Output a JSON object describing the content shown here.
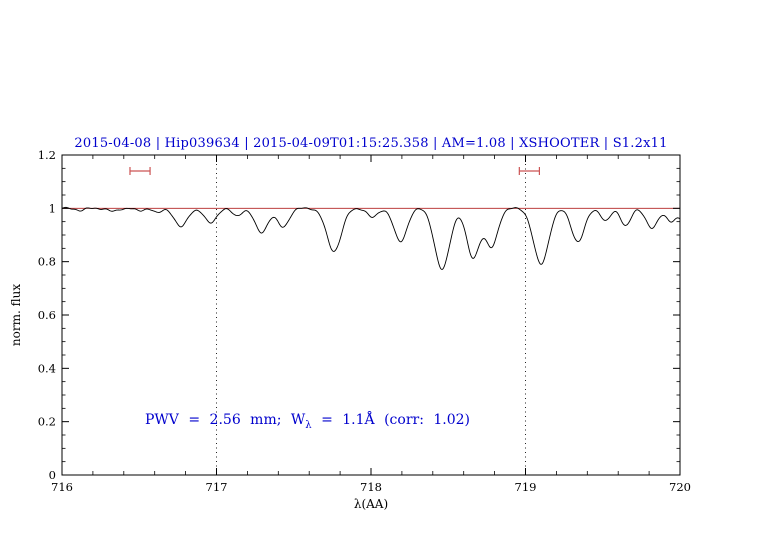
{
  "colors": {
    "title_blue": "#0000cd",
    "annotation_blue": "#0000cd",
    "fit_red": "#b22222",
    "marker_red": "#cc5555",
    "spectrum_black": "#000000"
  },
  "annotation": {
    "pre": "PWV = 2.56 mm; W",
    "sub": "λ",
    "post": " = 1.1Å (corr: 1.02)"
  },
  "chart_data": {
    "type": "line",
    "title": "2015-04-08 | Hip039634 | 2015-04-09T01:15:25.358 | AM=1.08 | XSHOOTER | S1.2x11",
    "xlabel": "λ(AA)",
    "ylabel": "norm. flux",
    "xlim": [
      716,
      720
    ],
    "ylim": [
      0,
      1.2
    ],
    "x_ticks": [
      716,
      717,
      718,
      719,
      720
    ],
    "x_tick_labels": [
      "716",
      "717",
      "718",
      "719",
      "720"
    ],
    "y_ticks": [
      0,
      0.2,
      0.4,
      0.6,
      0.8,
      1,
      1.2
    ],
    "y_tick_labels": [
      "0",
      "0.2",
      "0.4",
      "0.6",
      "0.8",
      "1",
      "1.2"
    ],
    "grid": false,
    "legend": null,
    "reference_vlines": [
      717,
      719
    ],
    "continuum_line": {
      "y": 1.0,
      "color": "#b22222"
    },
    "range_markers": [
      {
        "x1": 716.44,
        "x2": 716.57,
        "y": 1.14,
        "color": "#cc5555"
      },
      {
        "x1": 718.96,
        "x2": 719.09,
        "y": 1.14,
        "color": "#cc5555"
      }
    ],
    "annotation_text": "PWV = 2.56 mm; W_λ = 1.1Å (corr: 1.02)",
    "sample_step": 0.005,
    "spectrum": {
      "color": "#000000",
      "continuum": 1.0,
      "absorption_lines": [
        {
          "center": 716.12,
          "depth": 0.008,
          "sigma": 0.025
        },
        {
          "center": 716.33,
          "depth": 0.012,
          "sigma": 0.03
        },
        {
          "center": 716.5,
          "depth": 0.01,
          "sigma": 0.025
        },
        {
          "center": 716.62,
          "depth": 0.018,
          "sigma": 0.025
        },
        {
          "center": 716.77,
          "depth": 0.07,
          "sigma": 0.04
        },
        {
          "center": 716.96,
          "depth": 0.055,
          "sigma": 0.038
        },
        {
          "center": 717.13,
          "depth": 0.028,
          "sigma": 0.03
        },
        {
          "center": 717.29,
          "depth": 0.09,
          "sigma": 0.042
        },
        {
          "center": 717.43,
          "depth": 0.07,
          "sigma": 0.038
        },
        {
          "center": 717.76,
          "depth": 0.16,
          "sigma": 0.048
        },
        {
          "center": 718.01,
          "depth": 0.035,
          "sigma": 0.032
        },
        {
          "center": 718.19,
          "depth": 0.125,
          "sigma": 0.042
        },
        {
          "center": 718.46,
          "depth": 0.23,
          "sigma": 0.048
        },
        {
          "center": 718.66,
          "depth": 0.185,
          "sigma": 0.042
        },
        {
          "center": 718.78,
          "depth": 0.145,
          "sigma": 0.04
        },
        {
          "center": 719.1,
          "depth": 0.21,
          "sigma": 0.048
        },
        {
          "center": 719.34,
          "depth": 0.125,
          "sigma": 0.042
        },
        {
          "center": 719.52,
          "depth": 0.048,
          "sigma": 0.03
        },
        {
          "center": 719.65,
          "depth": 0.065,
          "sigma": 0.032
        },
        {
          "center": 719.82,
          "depth": 0.075,
          "sigma": 0.038
        },
        {
          "center": 719.94,
          "depth": 0.045,
          "sigma": 0.03
        },
        {
          "center": 720.02,
          "depth": 0.04,
          "sigma": 0.035
        }
      ]
    }
  }
}
